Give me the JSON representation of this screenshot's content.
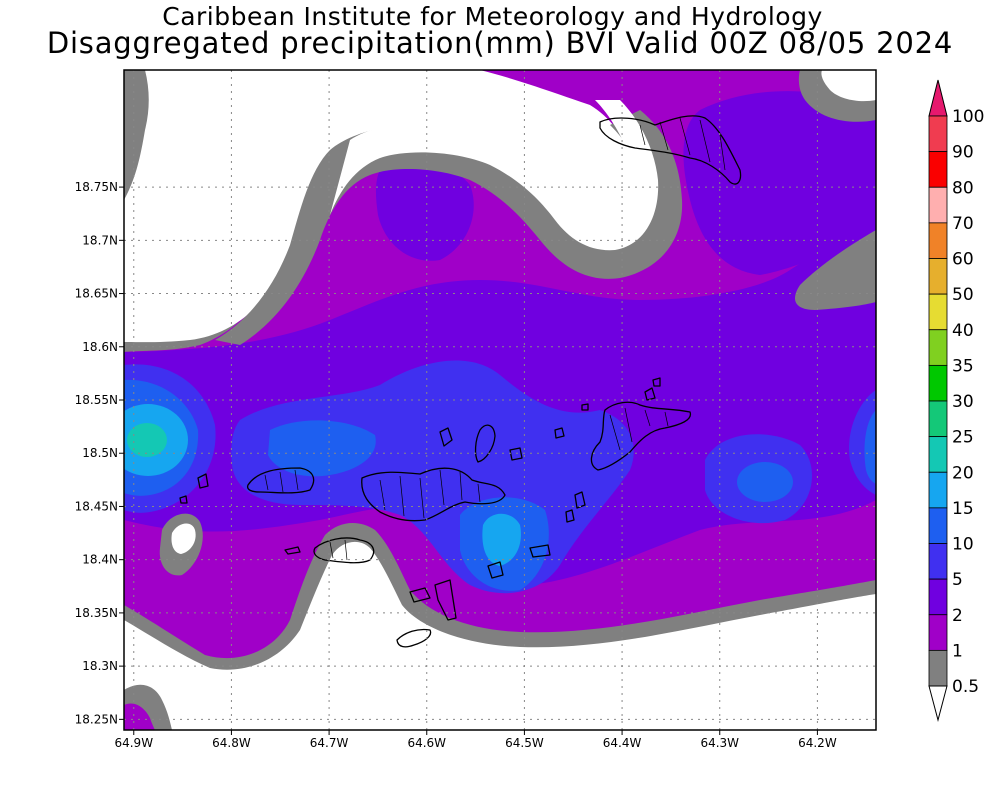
{
  "title_line1": "Caribbean Institute for Meteorology and Hydrology",
  "title_line2": "Disaggregated precipitation(mm) BVI Valid 00Z 08/05 2024",
  "map": {
    "lon_min": -64.91,
    "lon_max": -64.14,
    "lat_min": 18.24,
    "lat_max": 18.86,
    "x_ticks": [
      {
        "label": "64.9W",
        "lon": -64.9
      },
      {
        "label": "64.8W",
        "lon": -64.8
      },
      {
        "label": "64.7W",
        "lon": -64.7
      },
      {
        "label": "64.6W",
        "lon": -64.6
      },
      {
        "label": "64.5W",
        "lon": -64.5
      },
      {
        "label": "64.4W",
        "lon": -64.4
      },
      {
        "label": "64.3W",
        "lon": -64.3
      },
      {
        "label": "64.2W",
        "lon": -64.2
      }
    ],
    "y_ticks": [
      {
        "label": "18.75N",
        "lat": 18.75
      },
      {
        "label": "18.7N",
        "lat": 18.7
      },
      {
        "label": "18.65N",
        "lat": 18.65
      },
      {
        "label": "18.6N",
        "lat": 18.6
      },
      {
        "label": "18.55N",
        "lat": 18.55
      },
      {
        "label": "18.5N",
        "lat": 18.5
      },
      {
        "label": "18.45N",
        "lat": 18.45
      },
      {
        "label": "18.4N",
        "lat": 18.4
      },
      {
        "label": "18.35N",
        "lat": 18.35
      },
      {
        "label": "18.3N",
        "lat": 18.3
      },
      {
        "label": "18.25N",
        "lat": 18.25
      }
    ],
    "grid": true
  },
  "colorbar": {
    "levels": [
      {
        "label": "0.5",
        "color": "#ffffff"
      },
      {
        "label": "1",
        "color": "#808080"
      },
      {
        "label": "2",
        "color": "#a000c8"
      },
      {
        "label": "5",
        "color": "#7000e0"
      },
      {
        "label": "10",
        "color": "#4030f0"
      },
      {
        "label": "15",
        "color": "#1e5ff0"
      },
      {
        "label": "20",
        "color": "#16a6f0"
      },
      {
        "label": "25",
        "color": "#14c8b4"
      },
      {
        "label": "30",
        "color": "#14c878"
      },
      {
        "label": "35",
        "color": "#00c800"
      },
      {
        "label": "40",
        "color": "#80d020"
      },
      {
        "label": "50",
        "color": "#e6dc32"
      },
      {
        "label": "60",
        "color": "#e6af2d"
      },
      {
        "label": "70",
        "color": "#f08228"
      },
      {
        "label": "80",
        "color": "#ffafaf"
      },
      {
        "label": "90",
        "color": "#fa0000"
      },
      {
        "label": "100",
        "color": "#f03c50"
      }
    ],
    "top_arrow_color": "#e6196e",
    "bottom_arrow_color": "#ffffff"
  }
}
